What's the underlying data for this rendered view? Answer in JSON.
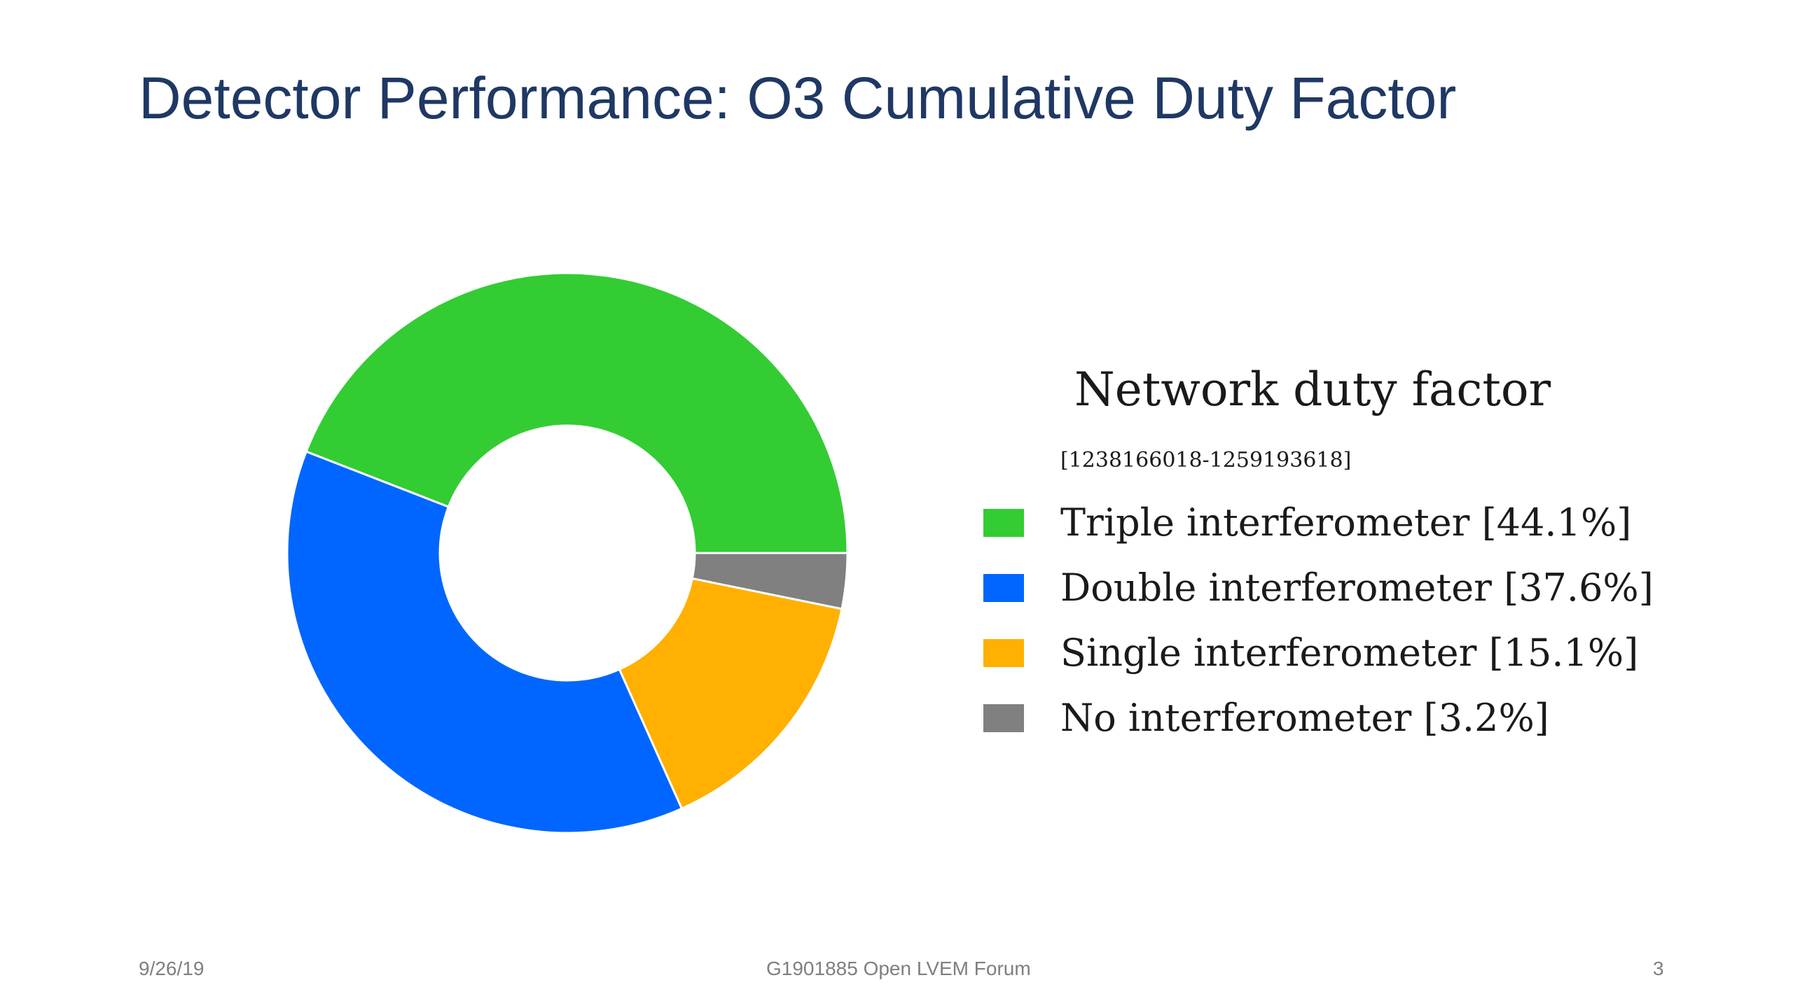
{
  "slide": {
    "title": "Detector Performance: O3 Cumulative Duty Factor",
    "footer_date": "9/26/19",
    "footer_center": "G1901885 Open LVEM Forum",
    "footer_page": "3"
  },
  "chart_data": {
    "type": "pie",
    "variant": "donut",
    "title": "Network duty factor",
    "subtitle": "[1238166018-1259193618]",
    "legend_position": "right",
    "slices": [
      {
        "label": "Triple interferometer [44.1%]",
        "value": 44.1,
        "color": "#33cc33"
      },
      {
        "label": "Double interferometer [37.6%]",
        "value": 37.6,
        "color": "#0066ff"
      },
      {
        "label": "Single interferometer [15.1%]",
        "value": 15.1,
        "color": "#ffb000"
      },
      {
        "label": "No interferometer [3.2%]",
        "value": 3.2,
        "color": "#808080"
      }
    ]
  }
}
